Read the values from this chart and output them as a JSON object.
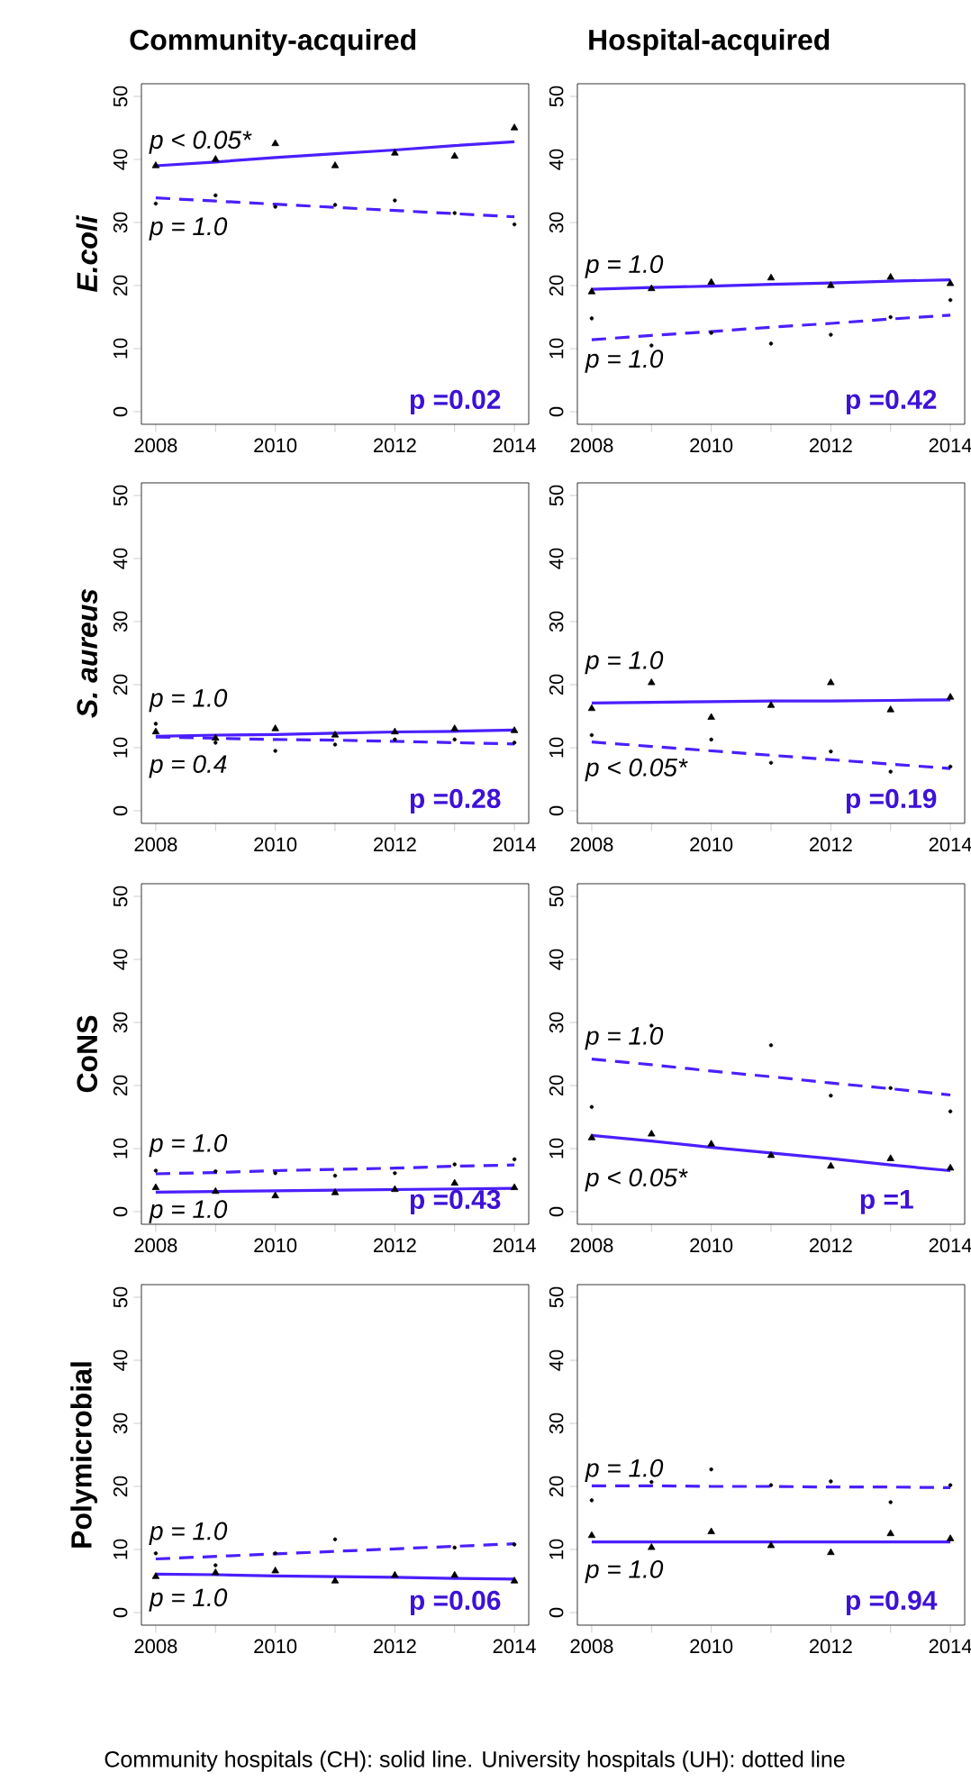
{
  "chart_data": [
    {
      "type": "scatter",
      "title": "Community-acquired",
      "ylabel": "E.coli",
      "x": [
        2008,
        2009,
        2010,
        2011,
        2012,
        2013,
        2014
      ],
      "xlim": [
        2007.76,
        2014.24
      ],
      "ylim": [
        -2,
        52
      ],
      "xticks": [
        2008,
        {
          "value": 2009,
          "label": null
        },
        2010,
        {
          "value": 2011,
          "label": null
        },
        2012,
        {
          "value": 2013,
          "label": null
        },
        2014
      ],
      "yticks": [
        0,
        10,
        20,
        30,
        40,
        50
      ],
      "series": [
        {
          "type": "scatter",
          "marker": "triangle",
          "color": "#000000",
          "values": [
            39,
            40,
            42.5,
            39,
            41,
            40.5,
            45
          ]
        },
        {
          "type": "scatter",
          "marker": "circle",
          "color": "#000000",
          "values": [
            33,
            34.3,
            32.5,
            32.8,
            33.5,
            31.5,
            29.7
          ]
        },
        {
          "type": "line",
          "line_style": "solid",
          "color": "#4b1fff",
          "values": [
            39.0,
            39.6,
            40.3,
            40.9,
            41.5,
            42.2,
            42.8
          ]
        },
        {
          "type": "line",
          "line_style": "dashed",
          "color": "#4b1fff",
          "values": [
            33.9,
            33.4,
            32.9,
            32.4,
            31.9,
            31.4,
            30.9
          ]
        }
      ],
      "annotations": [
        "p < 0.05*",
        "p = 1.0",
        "p =0.02"
      ]
    },
    {
      "type": "scatter",
      "title": "Hospital-acquired",
      "x": [
        2008,
        2009,
        2010,
        2011,
        2012,
        2013,
        2014
      ],
      "xlim": [
        2007.76,
        2014.24
      ],
      "ylim": [
        -2,
        52
      ],
      "xticks": [
        2008,
        {
          "value": 2009,
          "label": null
        },
        2010,
        {
          "value": 2011,
          "label": null
        },
        2012,
        {
          "value": 2013,
          "label": null
        },
        2014
      ],
      "yticks": [
        0,
        10,
        20,
        30,
        40,
        50
      ],
      "series": [
        {
          "type": "scatter",
          "marker": "triangle",
          "color": "#000000",
          "values": [
            19,
            19.5,
            20.5,
            21.2,
            20,
            21.3,
            20.3
          ]
        },
        {
          "type": "scatter",
          "marker": "circle",
          "color": "#000000",
          "values": [
            14.8,
            10.5,
            12.5,
            10.8,
            12.2,
            15,
            17.7
          ]
        },
        {
          "type": "line",
          "line_style": "solid",
          "color": "#4b1fff",
          "values": [
            19.4,
            19.7,
            19.9,
            20.2,
            20.4,
            20.7,
            20.9
          ]
        },
        {
          "type": "line",
          "line_style": "dashed",
          "color": "#4b1fff",
          "values": [
            11.4,
            12.1,
            12.7,
            13.4,
            14.0,
            14.7,
            15.3
          ]
        }
      ],
      "annotations": [
        "p = 1.0",
        "p = 1.0",
        "p =0.42"
      ]
    },
    {
      "type": "scatter",
      "ylabel": "S. aureus",
      "x": [
        2008,
        2009,
        2010,
        2011,
        2012,
        2013,
        2014
      ],
      "xlim": [
        2007.76,
        2014.24
      ],
      "ylim": [
        -2,
        52
      ],
      "xticks": [
        2008,
        {
          "value": 2009,
          "label": null
        },
        2010,
        {
          "value": 2011,
          "label": null
        },
        2012,
        {
          "value": 2013,
          "label": null
        },
        2014
      ],
      "yticks": [
        0,
        10,
        20,
        30,
        40,
        50
      ],
      "series": [
        {
          "type": "scatter",
          "marker": "triangle",
          "color": "#000000",
          "values": [
            12.5,
            11.5,
            13,
            12,
            12.5,
            13,
            12.7
          ]
        },
        {
          "type": "scatter",
          "marker": "circle",
          "color": "#000000",
          "values": [
            13.8,
            10.8,
            9.5,
            10.5,
            11.3,
            11.3,
            10.8
          ]
        },
        {
          "type": "line",
          "line_style": "solid",
          "color": "#4b1fff",
          "values": [
            11.8,
            12.0,
            12.1,
            12.3,
            12.5,
            12.6,
            12.8
          ]
        },
        {
          "type": "line",
          "line_style": "dashed",
          "color": "#4b1fff",
          "values": [
            11.7,
            11.5,
            11.3,
            11.2,
            11.0,
            10.8,
            10.6
          ]
        }
      ],
      "annotations": [
        "p = 1.0",
        "p = 0.4",
        "p =0.28"
      ]
    },
    {
      "type": "scatter",
      "x": [
        2008,
        2009,
        2010,
        2011,
        2012,
        2013,
        2014
      ],
      "xlim": [
        2007.76,
        2014.24
      ],
      "ylim": [
        -2,
        52
      ],
      "xticks": [
        2008,
        {
          "value": 2009,
          "label": null
        },
        2010,
        {
          "value": 2011,
          "label": null
        },
        2012,
        {
          "value": 2013,
          "label": null
        },
        2014
      ],
      "yticks": [
        0,
        10,
        20,
        30,
        40,
        50
      ],
      "series": [
        {
          "type": "scatter",
          "marker": "triangle",
          "color": "#000000",
          "values": [
            16.2,
            20.3,
            14.8,
            16.7,
            20.3,
            16,
            18
          ]
        },
        {
          "type": "scatter",
          "marker": "circle",
          "color": "#000000",
          "values": [
            12,
            null,
            11.3,
            7.6,
            9.4,
            6.2,
            7
          ]
        },
        {
          "type": "line",
          "line_style": "solid",
          "color": "#4b1fff",
          "values": [
            17.1,
            17.2,
            17.3,
            17.4,
            17.4,
            17.5,
            17.6
          ]
        },
        {
          "type": "line",
          "line_style": "dashed",
          "color": "#4b1fff",
          "values": [
            10.9,
            10.2,
            9.5,
            8.8,
            8.1,
            7.4,
            6.7
          ]
        }
      ],
      "annotations": [
        "p = 1.0",
        "p < 0.05*",
        "p =0.19"
      ]
    },
    {
      "type": "scatter",
      "ylabel": "CoNS",
      "x": [
        2008,
        2009,
        2010,
        2011,
        2012,
        2013,
        2014
      ],
      "xlim": [
        2007.76,
        2014.24
      ],
      "ylim": [
        -2,
        52
      ],
      "xticks": [
        2008,
        {
          "value": 2009,
          "label": null
        },
        2010,
        {
          "value": 2011,
          "label": null
        },
        2012,
        {
          "value": 2013,
          "label": null
        },
        2014
      ],
      "yticks": [
        0,
        10,
        20,
        30,
        40,
        50
      ],
      "series": [
        {
          "type": "scatter",
          "marker": "triangle",
          "color": "#000000",
          "values": [
            3.8,
            3.2,
            2.5,
            3,
            3.5,
            4.5,
            3.8
          ]
        },
        {
          "type": "scatter",
          "marker": "circle",
          "color": "#000000",
          "values": [
            6.5,
            6.4,
            6.1,
            5.7,
            6.1,
            7.5,
            8.3
          ]
        },
        {
          "type": "line",
          "line_style": "solid",
          "color": "#4b1fff",
          "values": [
            3.1,
            3.2,
            3.3,
            3.4,
            3.5,
            3.6,
            3.7
          ]
        },
        {
          "type": "line",
          "line_style": "dashed",
          "color": "#4b1fff",
          "values": [
            6.0,
            6.2,
            6.5,
            6.7,
            6.9,
            7.2,
            7.4
          ]
        }
      ],
      "annotations": [
        "p = 1.0",
        "p = 1.0",
        "p =0.43"
      ]
    },
    {
      "type": "scatter",
      "x": [
        2008,
        2009,
        2010,
        2011,
        2012,
        2013,
        2014
      ],
      "xlim": [
        2007.76,
        2014.24
      ],
      "ylim": [
        -2,
        52
      ],
      "xticks": [
        2008,
        {
          "value": 2009,
          "label": null
        },
        2010,
        {
          "value": 2011,
          "label": null
        },
        2012,
        {
          "value": 2013,
          "label": null
        },
        2014
      ],
      "yticks": [
        0,
        10,
        20,
        30,
        40,
        50
      ],
      "series": [
        {
          "type": "scatter",
          "marker": "triangle",
          "color": "#000000",
          "values": [
            11.7,
            12.3,
            10.7,
            8.9,
            7.2,
            8.4,
            6.9
          ]
        },
        {
          "type": "scatter",
          "marker": "circle",
          "color": "#000000",
          "values": [
            16.6,
            29.5,
            null,
            26.4,
            18.4,
            19.6,
            15.9
          ]
        },
        {
          "type": "line",
          "line_style": "solid",
          "color": "#4b1fff",
          "values": [
            12.1,
            11.2,
            10.2,
            9.3,
            8.4,
            7.4,
            6.5
          ]
        },
        {
          "type": "line",
          "line_style": "dashed",
          "color": "#4b1fff",
          "values": [
            24.2,
            23.3,
            22.3,
            21.4,
            20.4,
            19.5,
            18.5
          ]
        }
      ],
      "annotations": [
        "p = 1.0",
        "p < 0.05*",
        "p =1"
      ]
    },
    {
      "type": "scatter",
      "ylabel": "Polymicrobial",
      "x": [
        2008,
        2009,
        2010,
        2011,
        2012,
        2013,
        2014
      ],
      "xlim": [
        2007.76,
        2014.24
      ],
      "ylim": [
        -2,
        52
      ],
      "xticks": [
        2008,
        {
          "value": 2009,
          "label": null
        },
        2010,
        {
          "value": 2011,
          "label": null
        },
        2012,
        {
          "value": 2013,
          "label": null
        },
        2014
      ],
      "yticks": [
        0,
        10,
        20,
        30,
        40,
        50
      ],
      "series": [
        {
          "type": "scatter",
          "marker": "triangle",
          "color": "#000000",
          "values": [
            5.7,
            6.3,
            6.6,
            5,
            5.9,
            5.9,
            5
          ]
        },
        {
          "type": "scatter",
          "marker": "circle",
          "color": "#000000",
          "values": [
            9.4,
            7.5,
            9.4,
            11.6,
            null,
            10.3,
            10.8
          ]
        },
        {
          "type": "line",
          "line_style": "solid",
          "color": "#4b1fff",
          "values": [
            6.1,
            6.0,
            5.8,
            5.7,
            5.6,
            5.4,
            5.3
          ]
        },
        {
          "type": "line",
          "line_style": "dashed",
          "color": "#4b1fff",
          "values": [
            8.5,
            8.9,
            9.3,
            9.7,
            10.1,
            10.5,
            10.9
          ]
        }
      ],
      "annotations": [
        "p = 1.0",
        "p = 1.0",
        "p =0.06"
      ]
    },
    {
      "type": "scatter",
      "x": [
        2008,
        2009,
        2010,
        2011,
        2012,
        2013,
        2014
      ],
      "xlim": [
        2007.76,
        2014.24
      ],
      "ylim": [
        -2,
        52
      ],
      "xticks": [
        2008,
        {
          "value": 2009,
          "label": null
        },
        2010,
        {
          "value": 2011,
          "label": null
        },
        2012,
        {
          "value": 2013,
          "label": null
        },
        2014
      ],
      "yticks": [
        0,
        10,
        20,
        30,
        40,
        50
      ],
      "series": [
        {
          "type": "scatter",
          "marker": "triangle",
          "color": "#000000",
          "values": [
            12.2,
            10.3,
            12.8,
            10.6,
            9.5,
            12.5,
            11.7
          ]
        },
        {
          "type": "scatter",
          "marker": "circle",
          "color": "#000000",
          "values": [
            17.8,
            20.7,
            22.7,
            20.2,
            20.8,
            17.5,
            20.2
          ]
        },
        {
          "type": "line",
          "line_style": "solid",
          "color": "#4b1fff",
          "values": [
            11.2,
            11.2,
            11.2,
            11.2,
            11.2,
            11.2,
            11.2
          ]
        },
        {
          "type": "line",
          "line_style": "dashed",
          "color": "#4b1fff",
          "values": [
            20.1,
            20.1,
            20.0,
            20.0,
            19.9,
            19.9,
            19.8
          ]
        }
      ],
      "annotations": [
        "p = 1.0",
        "p = 1.0",
        "p =0.94",
        "Community hospitals (CH): solid line. University hospitals (UH): dotted line"
      ]
    }
  ]
}
